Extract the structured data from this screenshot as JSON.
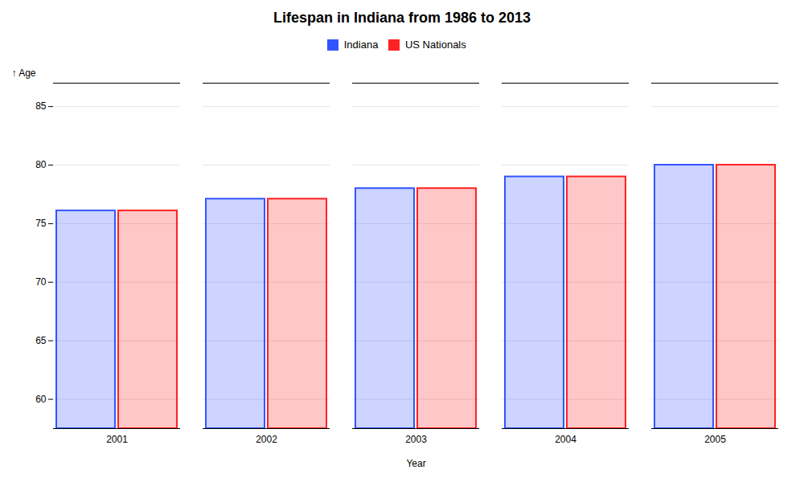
{
  "chart_data": {
    "type": "bar",
    "title": "Lifespan in Indiana from 1986 to 2013",
    "xlabel": "Year",
    "ylabel": "Age",
    "categories": [
      "2001",
      "2002",
      "2003",
      "2004",
      "2005"
    ],
    "series": [
      {
        "name": "Indiana",
        "color": "#3355ff",
        "values": [
          76.1,
          77.1,
          78.0,
          79.0,
          80.0
        ]
      },
      {
        "name": "US Nationals",
        "color": "#ff2222",
        "values": [
          76.1,
          77.1,
          78.0,
          79.0,
          80.0
        ]
      }
    ],
    "ylim": [
      57.5,
      87
    ],
    "yticks": [
      60,
      65,
      70,
      75,
      80,
      85
    ],
    "grid": true,
    "legend": "top"
  }
}
